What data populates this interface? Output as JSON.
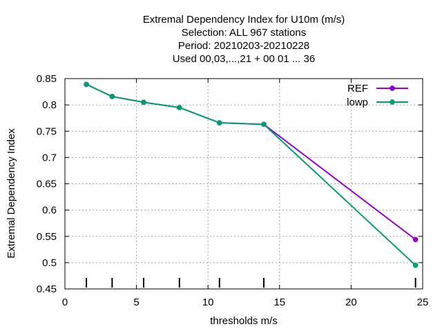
{
  "chart_data": {
    "type": "line",
    "title": [
      "Extremal Dependency Index  for U10m (m/s)",
      "Selection: ALL     967 stations",
      "Period: 20210203-20210228",
      "Used  00,03,...,21  + 00 01 ... 36"
    ],
    "xlabel": "thresholds m/s",
    "ylabel": "Extremal Dependency Index",
    "xlim": [
      0,
      25
    ],
    "ylim": [
      0.45,
      0.85
    ],
    "xticks": [
      0,
      5,
      10,
      15,
      20,
      25
    ],
    "yticks": [
      0.45,
      0.5,
      0.55,
      0.6,
      0.65,
      0.7,
      0.75,
      0.8,
      0.85
    ],
    "xtick_labels": [
      "0",
      "5",
      "10",
      "15",
      "20",
      "25"
    ],
    "ytick_labels": [
      "0.45",
      "0.5",
      "0.55",
      "0.6",
      "0.65",
      "0.7",
      "0.75",
      "0.8",
      "0.85"
    ],
    "grid": true,
    "legend_position": "top-right",
    "threshold_markers": [
      1.5,
      3.3,
      5.5,
      8.0,
      10.8,
      13.9,
      24.5
    ],
    "series": [
      {
        "name": "REF",
        "color": "#9400d3",
        "x": [
          1.5,
          3.3,
          5.5,
          8.0,
          10.8,
          13.9,
          24.5
        ],
        "y": [
          0.839,
          0.816,
          0.805,
          0.795,
          0.766,
          0.763,
          0.544
        ]
      },
      {
        "name": "lowp",
        "color": "#009e73",
        "x": [
          1.5,
          3.3,
          5.5,
          8.0,
          10.8,
          13.9,
          24.5
        ],
        "y": [
          0.839,
          0.816,
          0.805,
          0.795,
          0.766,
          0.763,
          0.495
        ]
      }
    ]
  }
}
